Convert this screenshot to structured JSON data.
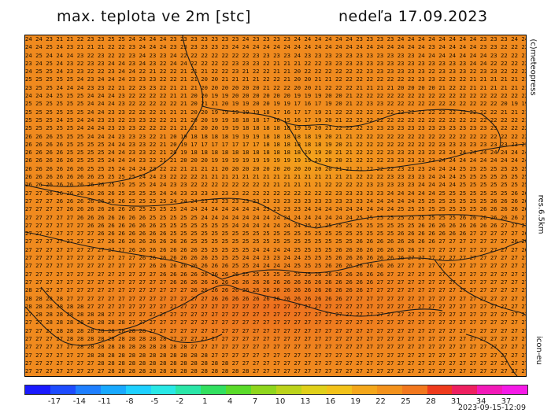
{
  "header": {
    "title": "max. teplota ve 2m [stc]",
    "date": "nedeľa 17.09.2023"
  },
  "side_labels": {
    "copyright": "(c)meteopress",
    "resolution": "res.6.5km",
    "model": "icon-eu"
  },
  "timestamp": "2023-09-15-12:09",
  "legend": {
    "tick_labels": [
      "-17",
      "-14",
      "-11",
      "-8",
      "-5",
      "-2",
      "1",
      "4",
      "7",
      "10",
      "13",
      "16",
      "19",
      "22",
      "25",
      "28",
      "31",
      "34",
      "37"
    ],
    "colors": [
      "#1a1aff",
      "#1e4cff",
      "#1f7fff",
      "#19a9ff",
      "#1fd0ff",
      "#29e8e6",
      "#2be6a8",
      "#32e060",
      "#5adb2a",
      "#8fd61d",
      "#bcd31b",
      "#e0d01a",
      "#f2c21a",
      "#f4a71b",
      "#f3921c",
      "#f2781e",
      "#ef3b1d",
      "#ee2060",
      "#f21ab8",
      "#f51ae6"
    ]
  },
  "map": {
    "background_color": "#f08a1e",
    "values": [
      "24 24 23 21 21 22 23 23 25 25 24 24 24 24 23 23 23 23 23 23 23 24 23 23 23 23 24 24 24 24 24 24 23 23 23 23 24 24 24 24 24 24 24 24 23 23 23 24 24 24 24 24",
      "24 24 25 24 23 21 21 21 22 22 23 24 24 24 23 23 23 23 23 23 24 24 24 24 24 24 24 24 24 24 24 24 24 24 24 24 24 24 24 23 24 24 24 24 23 23 22 22 22 22 22 22",
      "24 25 24 24 24 23 22 23 22 22 23 24 23 23 24 22 22 22 22 22 22 22 23 23 23 23 24 23 23 23 23 23 23 23 23 23 23 23 24 24 24 24 24 24 24 23 22 22 21 21 21 21",
      "23 24 25 24 23 22 23 23 24 24 23 24 23 22 24 24 22 22 22 22 23 23 23 22 21 21 21 22 22 23 23 23 23 23 23 23 23 23 23 23 23 23 23 24 24 22 22 22 22 22 22 22",
      "24 25 25 24 23 23 22 22 23 24 24 22 21 22 22 21 21 21 22 22 23 21 22 22 21 21 20 22 22 22 22 22 22 23 23 23 23 23 23 22 23 23 23 22 23 23 22 22 22 22 22 22",
      "25 25 25 25 25 24 23 24 24 24 23 23 23 22 22 21 21 20 20 21 21 21 21 22 22 21 20 20 21 21 22 22 22 22 22 22 22 22 23 23 22 22 22 21 21 21 21 21 21 21 21 21",
      "23 25 25 24 24 24 23 23 22 21 22 23 23 22 21 21 21 20 20 20 20 20 20 21 22 22 20 20 21 22 22 22 21 21 21 21 20 20 20 20 21 22 22 21 21 21 21 21 21 21 21 21",
      "24 24 24 25 25 25 24 24 24 23 22 22 22 22 21 21 20 20 19 19 20 20 20 20 20 20 19 19 19 20 20 21 22 22 22 22 22 22 22 22 22 22 22 22 22 22 22 22 22 22 22 22",
      "25 25 25 25 25 25 24 24 24 23 22 22 22 22 22 21 20 21 21 20 19 19 20 20 19 19 17 16 17 19 20 21 22 23 23 22 22 22 22 22 22 22 22 22 22 22 20 19 19 19 20 21",
      "25 25 25 25 25 25 24 24 23 23 22 22 22 21 21 21 20 20 19 19 19 19 19 18 17 16 17 17 19 21 22 22 22 22 22 22 22 22 22 22 22 22 22 22 22 22 21 21 21 20 19 19",
      "25 25 25 24 25 24 24 23 23 22 23 23 22 22 21 21 20 20 19 19 18 18 18 17 16 15 16 17 19 20 21 22 22 22 22 22 22 22 22 22 22 22 22 22 22 22 22 22 21 21 19 18",
      "25 25 25 25 25 24 24 24 23 23 23 22 22 22 21 21 21 20 20 19 19 18 18 18 18 18 19 19 20 21 22 22 22 23 23 23 23 23 23 23 23 23 23 23 23 23 22 22 22 22 21 20",
      "26 26 26 25 25 25 24 24 24 23 23 23 22 21 20 19 18 18 18 18 19 19 19 18 18 18 18 18 19 20 21 21 22 22 22 22 22 22 22 22 22 22 22 22 22 22 22 22 22 22 21 20",
      "26 26 26 26 25 25 25 25 24 24 23 23 22 21 20 19 17 17 17 17 17 17 17 18 18 18 18 18 18 19 20 21 22 22 22 22 22 22 22 22 23 23 23 23 23 23 23 23 23 23 22 22",
      "26 26 26 26 25 25 25 25 24 24 23 23 22 21 20 19 18 18 18 18 18 18 18 18 18 18 18 19 19 20 21 21 22 22 22 23 23 23 23 23 23 24 24 24 24 24 24 24 24 23 23 23",
      "26 26 26 26 26 25 25 25 24 24 24 23 22 21 21 20 20 20 19 19 19 19 19 19 19 19 19 19 20 20 20 21 22 22 22 23 23 23 23 23 24 24 24 24 24 24 24 24 24 24 24 24",
      "26 26 26 26 26 26 25 25 25 24 24 24 23 22 22 21 21 21 21 20 20 20 20 20 20 20 20 20 20 20 21 21 21 22 22 22 23 23 23 24 24 24 25 25 25 25 25 25 25 24 24 24",
      "26 26 26 26 26 26 26 25 25 25 25 24 24 23 22 22 22 21 21 21 21 21 21 21 21 21 21 21 21 21 21 21 22 22 22 23 23 23 23 24 24 24 25 25 25 25 25 25 25 25 25 25",
      "26 26 26 26 26 26 26 26 25 25 25 25 24 24 23 23 22 22 22 22 22 22 22 22 21 21 21 21 21 22 22 22 22 23 23 23 23 23 24 24 24 24 25 25 25 25 25 25 25 25 25 26",
      "27 27 26 26 26 26 26 26 26 25 25 25 25 24 24 23 23 23 23 23 23 22 22 22 22 22 22 22 22 22 23 23 23 23 23 24 24 24 24 24 25 25 25 25 25 25 25 26 26 26 26 26",
      "27 27 27 26 26 26 26 26 26 26 25 25 25 25 24 24 24 23 23 23 23 23 23 23 23 23 23 23 23 23 23 23 23 24 24 24 24 24 25 25 25 25 25 25 25 26 26 26 26 26 26 26",
      "27 27 27 27 26 26 26 26 26 26 26 25 25 25 25 24 24 24 24 24 24 24 24 23 23 23 23 24 24 24 24 24 24 24 24 24 25 25 25 25 25 25 25 25 26 26 26 26 26 26 26 26",
      "27 27 27 27 27 26 26 26 26 26 26 26 25 25 25 25 25 24 24 24 24 24 24 24 24 24 24 24 24 24 24 24 25 25 25 25 25 25 25 25 25 25 26 26 26 26 26 26 27 27 26 26",
      "27 27 27 27 27 27 26 26 26 26 26 26 26 25 25 25 25 25 25 25 24 24 24 24 24 24 24 25 25 25 25 25 25 25 25 25 25 25 26 26 26 26 26 26 26 26 27 27 27 26 26 26",
      "27 27 27 27 27 27 27 26 26 26 26 26 26 26 25 25 25 25 25 25 25 25 25 25 25 25 25 25 25 25 25 25 25 25 25 25 26 26 26 26 26 26 26 27 27 27 27 27 26 26 26 26",
      "27 27 27 27 27 27 27 27 26 26 26 26 26 26 26 26 25 25 25 25 25 25 25 25 25 25 25 25 25 25 25 25 26 26 26 26 26 26 26 26 27 27 27 27 27 27 27 26 26 26 26 26",
      "27 27 27 27 27 27 27 27 27 27 26 26 26 26 26 26 26 25 25 25 25 25 24 24 24 24 25 25 25 25 26 26 26 26 26 26 26 26 27 27 27 27 27 27 27 27 27 27 26 26 26 26",
      "27 27 27 27 27 27 27 27 27 27 27 26 26 26 26 26 26 26 25 25 25 24 24 23 23 24 24 25 25 25 26 26 26 26 26 26 26 27 27 27 27 27 27 27 27 27 27 27 27 26 26 26",
      "27 27 27 27 27 27 27 27 27 27 27 27 26 26 26 26 26 26 26 26 25 25 24 24 24 24 25 25 25 26 26 26 26 26 26 26 27 27 27 27 27 27 27 27 27 27 27 27 27 27 26 26",
      "27 27 27 27 27 27 27 27 27 27 27 27 27 26 26 26 26 26 26 26 26 25 25 25 25 25 25 25 26 26 26 26 26 26 26 27 27 27 27 27 27 27 27 27 27 27 27 27 27 27 27 26",
      "27 27 27 27 27 27 27 27 27 27 27 27 27 27 26 26 26 26 26 26 26 26 26 26 26 26 26 26 26 26 26 26 26 26 27 27 27 27 27 27 27 27 27 27 27 27 27 27 27 27 27 27",
      "28 27 27 27 27 27 27 27 27 27 27 27 27 27 27 27 26 26 26 26 26 26 26 26 26 26 26 26 26 26 26 26 26 27 27 27 27 27 27 27 27 27 27 27 27 27 27 27 27 27 27 27",
      "28 28 28 28 27 27 27 27 27 27 27 27 27 27 27 27 27 27 26 26 26 26 26 26 26 26 26 26 26 26 26 27 27 27 27 27 27 27 27 27 27 27 27 27 27 27 27 27 27 27 27 27",
      "28 28 28 28 28 28 27 27 27 27 27 27 27 27 27 27 27 27 27 27 27 27 27 27 27 27 27 27 27 27 27 27 27 27 27 27 27 27 27 27 27 27 27 27 27 27 27 27 27 27 27 27",
      "27 28 28 28 28 28 28 28 27 27 27 27 27 27 27 27 27 27 27 27 27 27 27 27 27 27 27 27 27 27 27 27 27 27 27 27 27 27 27 27 27 27 27 27 27 27 27 27 27 27 27 27",
      "27 27 28 28 28 28 28 28 28 28 27 27 27 27 27 27 27 27 27 27 27 27 27 27 27 27 27 27 27 27 27 27 27 27 27 27 27 27 27 27 27 27 27 27 27 27 27 27 27 27 27 27",
      "27 27 27 28 28 28 28 28 28 28 28 28 27 27 27 27 27 27 27 27 27 27 27 27 27 27 27 27 27 27 27 27 27 27 27 27 27 27 27 27 27 27 27 27 27 27 27 27 27 27 27 27",
      "27 27 27 27 28 28 28 28 28 28 28 28 28 28 27 27 27 27 27 27 27 27 27 27 27 27 27 27 27 27 27 27 27 27 27 27 27 27 27 27 27 27 27 27 27 27 27 27 27 27 27 27",
      "27 27 27 27 27 28 28 28 28 28 28 28 28 28 28 28 27 27 27 27 27 27 27 27 27 27 27 27 27 27 27 27 27 27 27 27 27 27 27 27 27 27 27 27 27 27 27 27 27 27 27 27",
      "27 27 27 27 27 27 28 28 28 28 28 28 28 28 28 28 28 28 27 27 27 27 27 27 27 27 27 27 27 27 27 27 27 27 27 27 27 27 27 27 27 27 27 27 27 27 27 27 27 27 27 27",
      "27 27 27 27 27 27 27 28 28 28 28 28 28 28 28 28 28 28 28 28 27 27 27 27 27 27 27 27 27 27 27 27 27 27 27 27 27 27 27 27 27 27 27 27 27 27 27 27 27 27 27 27",
      "27 27 27 27 27 27 27 27 28 28 28 28 28 28 28 28 28 28 28 28 28 28 27 27 27 27 27 27 27 27 27 27 27 27 27 27 27 27 27 27 27 27 27 27 27 27 27 27 27 27 27 27"
    ]
  }
}
